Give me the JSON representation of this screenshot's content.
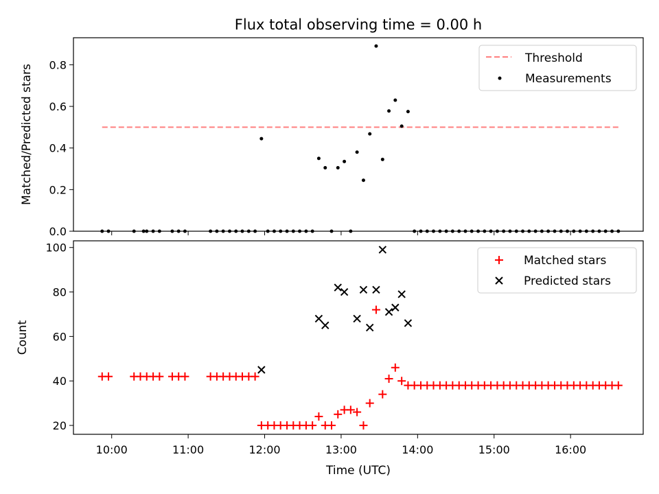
{
  "chart_data": [
    {
      "type": "scatter",
      "title": "Flux total observing time = 0.00 h",
      "xlabel": "",
      "ylabel": "Matched/Predicted stars",
      "xlim": [
        9.5,
        16.95
      ],
      "ylim": [
        0,
        0.93
      ],
      "yticks": [
        0,
        0.2,
        0.4,
        0.6,
        0.8
      ],
      "ytick_labels": [
        "0.0",
        "0.2",
        "0.4",
        "0.6",
        "0.8"
      ],
      "legend": [
        "Threshold",
        "Measurements"
      ],
      "legend_position": "top-right",
      "threshold": {
        "name": "Threshold",
        "y": 0.5,
        "x_start": 9.875,
        "x_end": 16.625,
        "color": "#ff7f7f",
        "style": "dashed"
      },
      "series": [
        {
          "name": "Measurements",
          "color": "#000000",
          "marker": "dot",
          "points": [
            [
              9.875,
              0
            ],
            [
              9.958,
              0
            ],
            [
              10.292,
              0
            ],
            [
              10.417,
              0
            ],
            [
              10.458,
              0
            ],
            [
              10.542,
              0
            ],
            [
              10.625,
              0
            ],
            [
              10.792,
              0
            ],
            [
              10.875,
              0
            ],
            [
              10.958,
              0
            ],
            [
              11.292,
              0
            ],
            [
              11.375,
              0
            ],
            [
              11.458,
              0
            ],
            [
              11.542,
              0
            ],
            [
              11.625,
              0
            ],
            [
              11.708,
              0
            ],
            [
              11.792,
              0
            ],
            [
              11.875,
              0
            ],
            [
              11.958,
              0.445
            ],
            [
              12.042,
              0
            ],
            [
              12.125,
              0
            ],
            [
              12.208,
              0
            ],
            [
              12.292,
              0
            ],
            [
              12.375,
              0
            ],
            [
              12.458,
              0
            ],
            [
              12.542,
              0
            ],
            [
              12.625,
              0
            ],
            [
              12.708,
              0.35
            ],
            [
              12.792,
              0.305
            ],
            [
              12.875,
              0
            ],
            [
              12.958,
              0.305
            ],
            [
              13.042,
              0.335
            ],
            [
              13.125,
              0
            ],
            [
              13.208,
              0.38
            ],
            [
              13.292,
              0.245
            ],
            [
              13.375,
              0.468
            ],
            [
              13.458,
              0.89
            ],
            [
              13.542,
              0.345
            ],
            [
              13.625,
              0.578
            ],
            [
              13.708,
              0.63
            ],
            [
              13.792,
              0.505
            ],
            [
              13.875,
              0.575
            ],
            [
              13.958,
              0
            ],
            [
              14.042,
              0
            ],
            [
              14.125,
              0
            ],
            [
              14.208,
              0
            ],
            [
              14.292,
              0
            ],
            [
              14.375,
              0
            ],
            [
              14.458,
              0
            ],
            [
              14.542,
              0
            ],
            [
              14.625,
              0
            ],
            [
              14.708,
              0
            ],
            [
              14.792,
              0
            ],
            [
              14.875,
              0
            ],
            [
              14.958,
              0
            ],
            [
              15.042,
              0
            ],
            [
              15.125,
              0
            ],
            [
              15.208,
              0
            ],
            [
              15.292,
              0
            ],
            [
              15.375,
              0
            ],
            [
              15.458,
              0
            ],
            [
              15.542,
              0
            ],
            [
              15.625,
              0
            ],
            [
              15.708,
              0
            ],
            [
              15.792,
              0
            ],
            [
              15.875,
              0
            ],
            [
              15.958,
              0
            ],
            [
              16.042,
              0
            ],
            [
              16.125,
              0
            ],
            [
              16.208,
              0
            ],
            [
              16.292,
              0
            ],
            [
              16.375,
              0
            ],
            [
              16.458,
              0
            ],
            [
              16.542,
              0
            ],
            [
              16.625,
              0
            ]
          ]
        }
      ]
    },
    {
      "type": "scatter",
      "title": "",
      "xlabel": "Time (UTC)",
      "ylabel": "Count",
      "xlim": [
        9.5,
        16.95
      ],
      "ylim": [
        16,
        103
      ],
      "xticks": [
        10,
        11,
        12,
        13,
        14,
        15,
        16
      ],
      "xtick_labels": [
        "10:00",
        "11:00",
        "12:00",
        "13:00",
        "14:00",
        "15:00",
        "16:00"
      ],
      "yticks": [
        20,
        40,
        60,
        80,
        100
      ],
      "ytick_labels": [
        "20",
        "40",
        "60",
        "80",
        "100"
      ],
      "legend": [
        "Matched stars",
        "Predicted stars"
      ],
      "legend_position": "top-right",
      "series": [
        {
          "name": "Matched stars",
          "color": "#ff0000",
          "marker": "plus",
          "points": [
            [
              9.875,
              42
            ],
            [
              9.958,
              42
            ],
            [
              10.292,
              42
            ],
            [
              10.375,
              42
            ],
            [
              10.458,
              42
            ],
            [
              10.542,
              42
            ],
            [
              10.625,
              42
            ],
            [
              10.792,
              42
            ],
            [
              10.875,
              42
            ],
            [
              10.958,
              42
            ],
            [
              11.292,
              42
            ],
            [
              11.375,
              42
            ],
            [
              11.458,
              42
            ],
            [
              11.542,
              42
            ],
            [
              11.625,
              42
            ],
            [
              11.708,
              42
            ],
            [
              11.792,
              42
            ],
            [
              11.875,
              42
            ],
            [
              11.958,
              20
            ],
            [
              12.042,
              20
            ],
            [
              12.125,
              20
            ],
            [
              12.208,
              20
            ],
            [
              12.292,
              20
            ],
            [
              12.375,
              20
            ],
            [
              12.458,
              20
            ],
            [
              12.542,
              20
            ],
            [
              12.625,
              20
            ],
            [
              12.708,
              24
            ],
            [
              12.792,
              20
            ],
            [
              12.875,
              20
            ],
            [
              12.958,
              25
            ],
            [
              13.042,
              27
            ],
            [
              13.125,
              27
            ],
            [
              13.208,
              26
            ],
            [
              13.292,
              20
            ],
            [
              13.375,
              30
            ],
            [
              13.458,
              72
            ],
            [
              13.542,
              34
            ],
            [
              13.625,
              41
            ],
            [
              13.708,
              46
            ],
            [
              13.792,
              40
            ],
            [
              13.875,
              38
            ],
            [
              13.958,
              38
            ],
            [
              14.042,
              38
            ],
            [
              14.125,
              38
            ],
            [
              14.208,
              38
            ],
            [
              14.292,
              38
            ],
            [
              14.375,
              38
            ],
            [
              14.458,
              38
            ],
            [
              14.542,
              38
            ],
            [
              14.625,
              38
            ],
            [
              14.708,
              38
            ],
            [
              14.792,
              38
            ],
            [
              14.875,
              38
            ],
            [
              14.958,
              38
            ],
            [
              15.042,
              38
            ],
            [
              15.125,
              38
            ],
            [
              15.208,
              38
            ],
            [
              15.292,
              38
            ],
            [
              15.375,
              38
            ],
            [
              15.458,
              38
            ],
            [
              15.542,
              38
            ],
            [
              15.625,
              38
            ],
            [
              15.708,
              38
            ],
            [
              15.792,
              38
            ],
            [
              15.875,
              38
            ],
            [
              15.958,
              38
            ],
            [
              16.042,
              38
            ],
            [
              16.125,
              38
            ],
            [
              16.208,
              38
            ],
            [
              16.292,
              38
            ],
            [
              16.375,
              38
            ],
            [
              16.458,
              38
            ],
            [
              16.542,
              38
            ],
            [
              16.625,
              38
            ]
          ]
        },
        {
          "name": "Predicted stars",
          "color": "#000000",
          "marker": "x",
          "points": [
            [
              11.958,
              45
            ],
            [
              12.708,
              68
            ],
            [
              12.792,
              65
            ],
            [
              12.958,
              82
            ],
            [
              13.042,
              80
            ],
            [
              13.208,
              68
            ],
            [
              13.292,
              81
            ],
            [
              13.375,
              64
            ],
            [
              13.458,
              81
            ],
            [
              13.542,
              99
            ],
            [
              13.625,
              71
            ],
            [
              13.708,
              73
            ],
            [
              13.792,
              79
            ],
            [
              13.875,
              66
            ]
          ]
        }
      ]
    }
  ]
}
